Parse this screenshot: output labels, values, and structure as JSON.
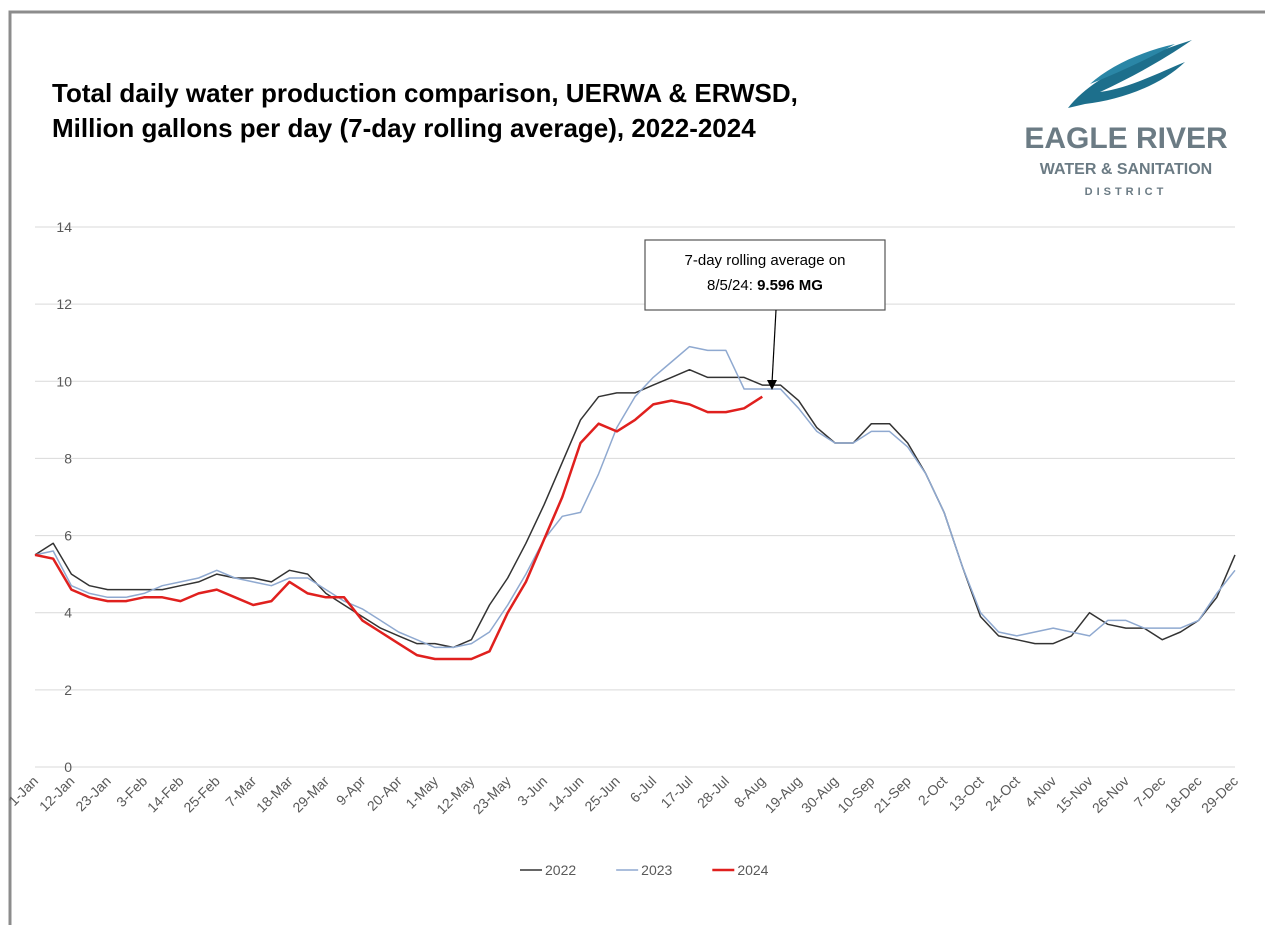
{
  "chart_data": {
    "type": "line",
    "title": "Total daily water production comparison, UERWA & ERWSD,",
    "subtitle": "Million gallons per day (7-day rolling average), 2022-2024",
    "logo": [
      "EAGLE RIVER",
      "WATER & SANITATION",
      "DISTRICT"
    ],
    "annotation": [
      "7-day rolling average on",
      "8/5/24:",
      "9.596 MG"
    ],
    "categories": [
      "1-Jan",
      null,
      "12-Jan",
      null,
      "23-Jan",
      null,
      "3-Feb",
      null,
      "14-Feb",
      null,
      "25-Feb",
      null,
      "7-Mar",
      null,
      "18-Mar",
      null,
      "29-Mar",
      null,
      "9-Apr",
      null,
      "20-Apr",
      null,
      "1-May",
      null,
      "12-May",
      null,
      "23-May",
      null,
      "3-Jun",
      null,
      "14-Jun",
      null,
      "25-Jun",
      null,
      "6-Jul",
      null,
      "17-Jul",
      null,
      "28-Jul",
      null,
      "8-Aug",
      null,
      "19-Aug",
      null,
      "30-Aug",
      null,
      "10-Sep",
      null,
      "21-Sep",
      null,
      "2-Oct",
      null,
      "13-Oct",
      null,
      "24-Oct",
      null,
      "4-Nov",
      null,
      "15-Nov",
      null,
      "26-Nov",
      null,
      "7-Dec",
      null,
      "18-Dec",
      null,
      "29-Dec"
    ],
    "series": [
      {
        "name": "2022",
        "color": "#333333",
        "width": 1.5,
        "values": [
          5.5,
          5.8,
          5.0,
          4.7,
          4.6,
          4.6,
          4.6,
          4.6,
          4.7,
          4.8,
          5.0,
          4.9,
          4.9,
          4.8,
          5.1,
          5.0,
          4.5,
          4.2,
          3.9,
          3.6,
          3.4,
          3.2,
          3.2,
          3.1,
          3.3,
          4.2,
          4.9,
          5.8,
          6.8,
          7.9,
          9.0,
          9.6,
          9.7,
          9.7,
          9.9,
          10.1,
          10.3,
          10.1,
          10.1,
          10.1,
          9.9,
          9.9,
          9.5,
          8.8,
          8.4,
          8.4,
          8.9,
          8.9,
          8.4,
          7.6,
          6.6,
          5.2,
          3.9,
          3.4,
          3.3,
          3.2,
          3.2,
          3.4,
          4.0,
          3.7,
          3.6,
          3.6,
          3.3,
          3.5,
          3.8,
          4.4,
          5.5
        ]
      },
      {
        "name": "2023",
        "color": "#8fa9d0",
        "width": 1.5,
        "values": [
          5.5,
          5.6,
          4.7,
          4.5,
          4.4,
          4.4,
          4.5,
          4.7,
          4.8,
          4.9,
          5.1,
          4.9,
          4.8,
          4.7,
          4.9,
          4.9,
          4.6,
          4.3,
          4.1,
          3.8,
          3.5,
          3.3,
          3.1,
          3.1,
          3.2,
          3.5,
          4.2,
          5.0,
          5.9,
          6.5,
          6.6,
          7.6,
          8.8,
          9.6,
          10.1,
          10.5,
          10.9,
          10.8,
          10.8,
          9.8,
          9.8,
          9.8,
          9.3,
          8.7,
          8.4,
          8.4,
          8.7,
          8.7,
          8.3,
          7.6,
          6.6,
          5.2,
          4.0,
          3.5,
          3.4,
          3.5,
          3.6,
          3.5,
          3.4,
          3.8,
          3.8,
          3.6,
          3.6,
          3.6,
          3.8,
          4.5,
          5.1
        ]
      },
      {
        "name": "2024",
        "color": "#e0201e",
        "width": 2.5,
        "values": [
          5.5,
          5.4,
          4.6,
          4.4,
          4.3,
          4.3,
          4.4,
          4.4,
          4.3,
          4.5,
          4.6,
          4.4,
          4.2,
          4.3,
          4.8,
          4.5,
          4.4,
          4.4,
          3.8,
          3.5,
          3.2,
          2.9,
          2.8,
          2.8,
          2.8,
          3.0,
          4.0,
          4.8,
          5.9,
          7.0,
          8.4,
          8.9,
          8.7,
          9.0,
          9.4,
          9.5,
          9.4,
          9.2,
          9.2,
          9.3,
          9.6,
          null,
          null,
          null,
          null,
          null,
          null,
          null,
          null,
          null,
          null,
          null,
          null,
          null,
          null,
          null,
          null,
          null,
          null,
          null,
          null,
          null,
          null,
          null,
          null,
          null,
          null
        ]
      }
    ],
    "ylim": [
      0,
      14
    ],
    "yticks": [
      0,
      2,
      4,
      6,
      8,
      10,
      12,
      14
    ],
    "grid": true,
    "legend": "bottom"
  }
}
